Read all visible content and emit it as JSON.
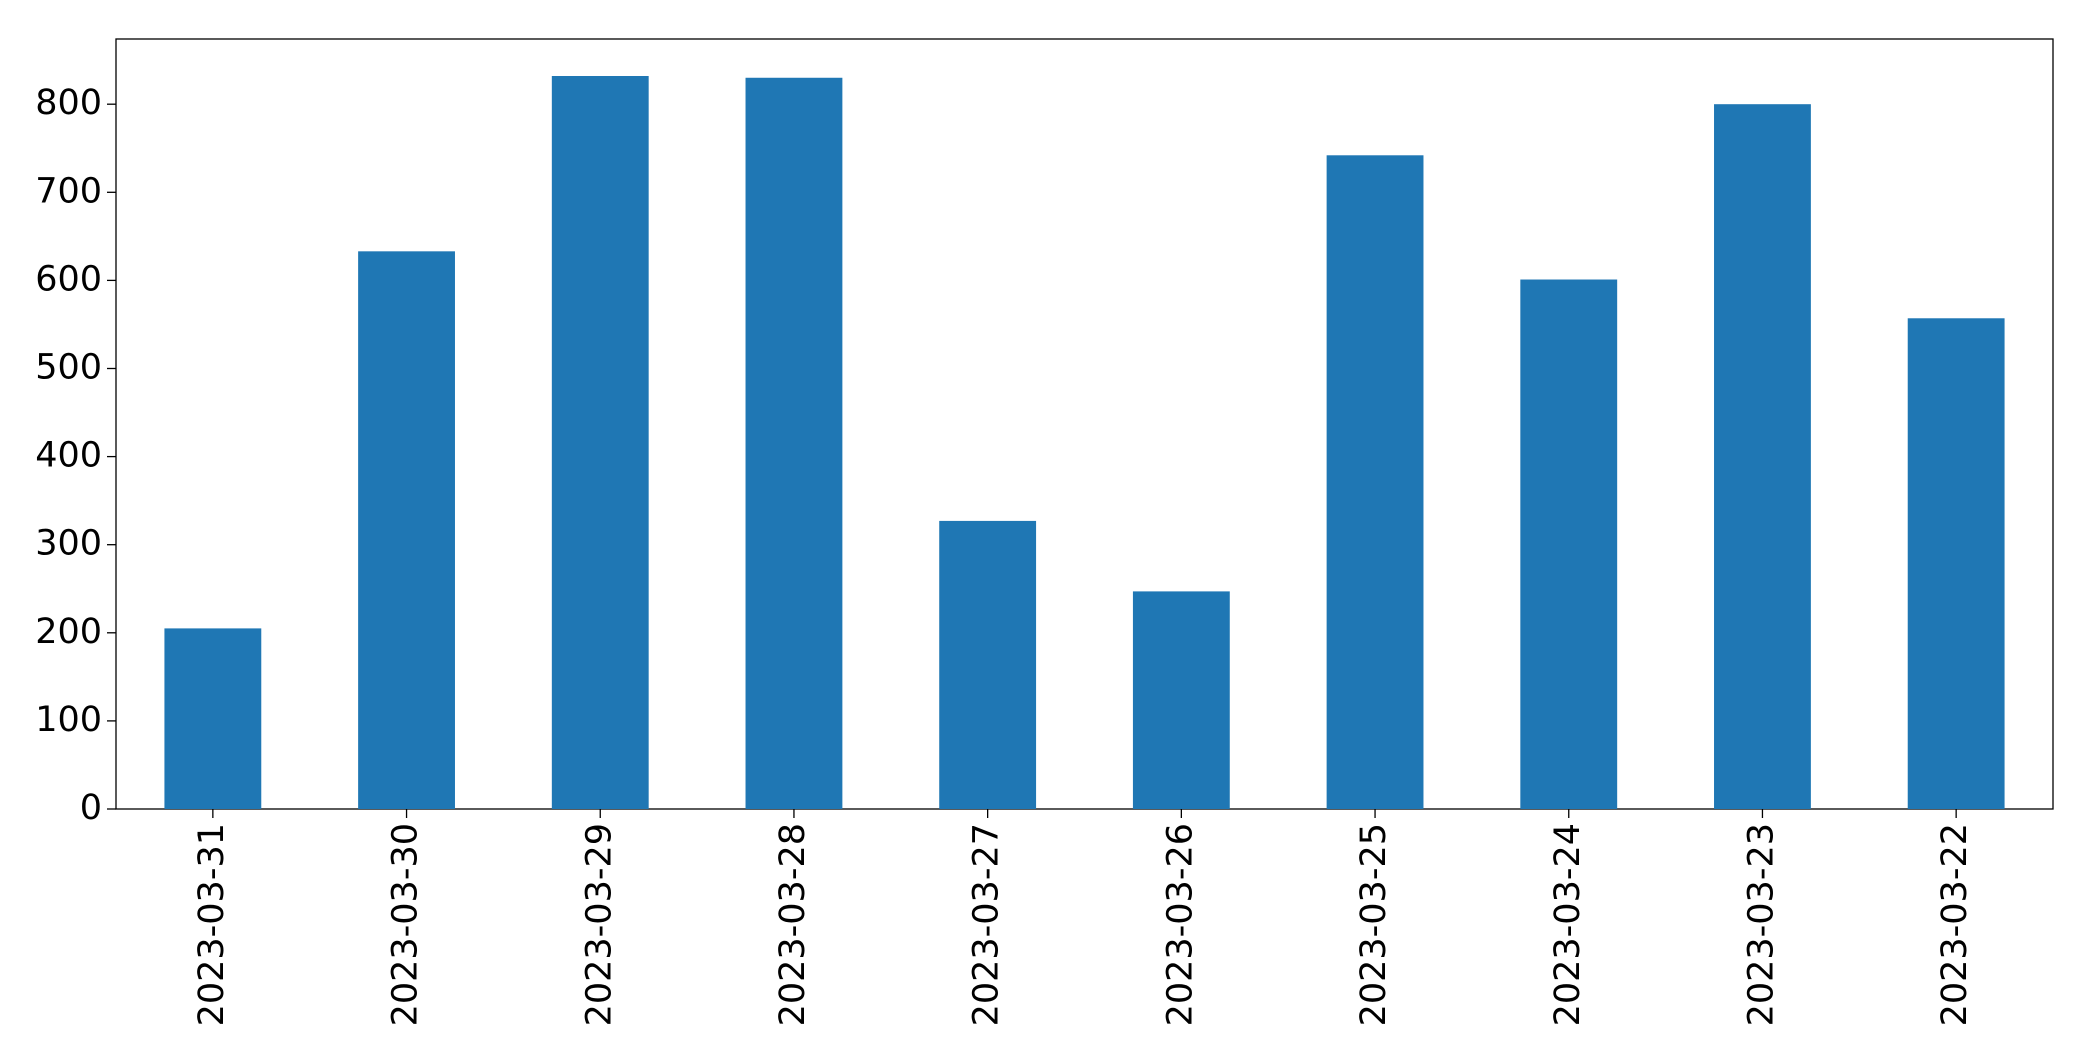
{
  "chart_data": {
    "type": "bar",
    "categories": [
      "2023-03-31",
      "2023-03-30",
      "2023-03-29",
      "2023-03-28",
      "2023-03-27",
      "2023-03-26",
      "2023-03-25",
      "2023-03-24",
      "2023-03-23",
      "2023-03-22"
    ],
    "values": [
      205,
      633,
      832,
      830,
      327,
      247,
      742,
      601,
      800,
      557
    ],
    "color": "#1f77b4",
    "ylim": [
      0,
      874
    ],
    "yticks": [
      0,
      100,
      200,
      300,
      400,
      500,
      600,
      700,
      800
    ],
    "grid": false
  }
}
